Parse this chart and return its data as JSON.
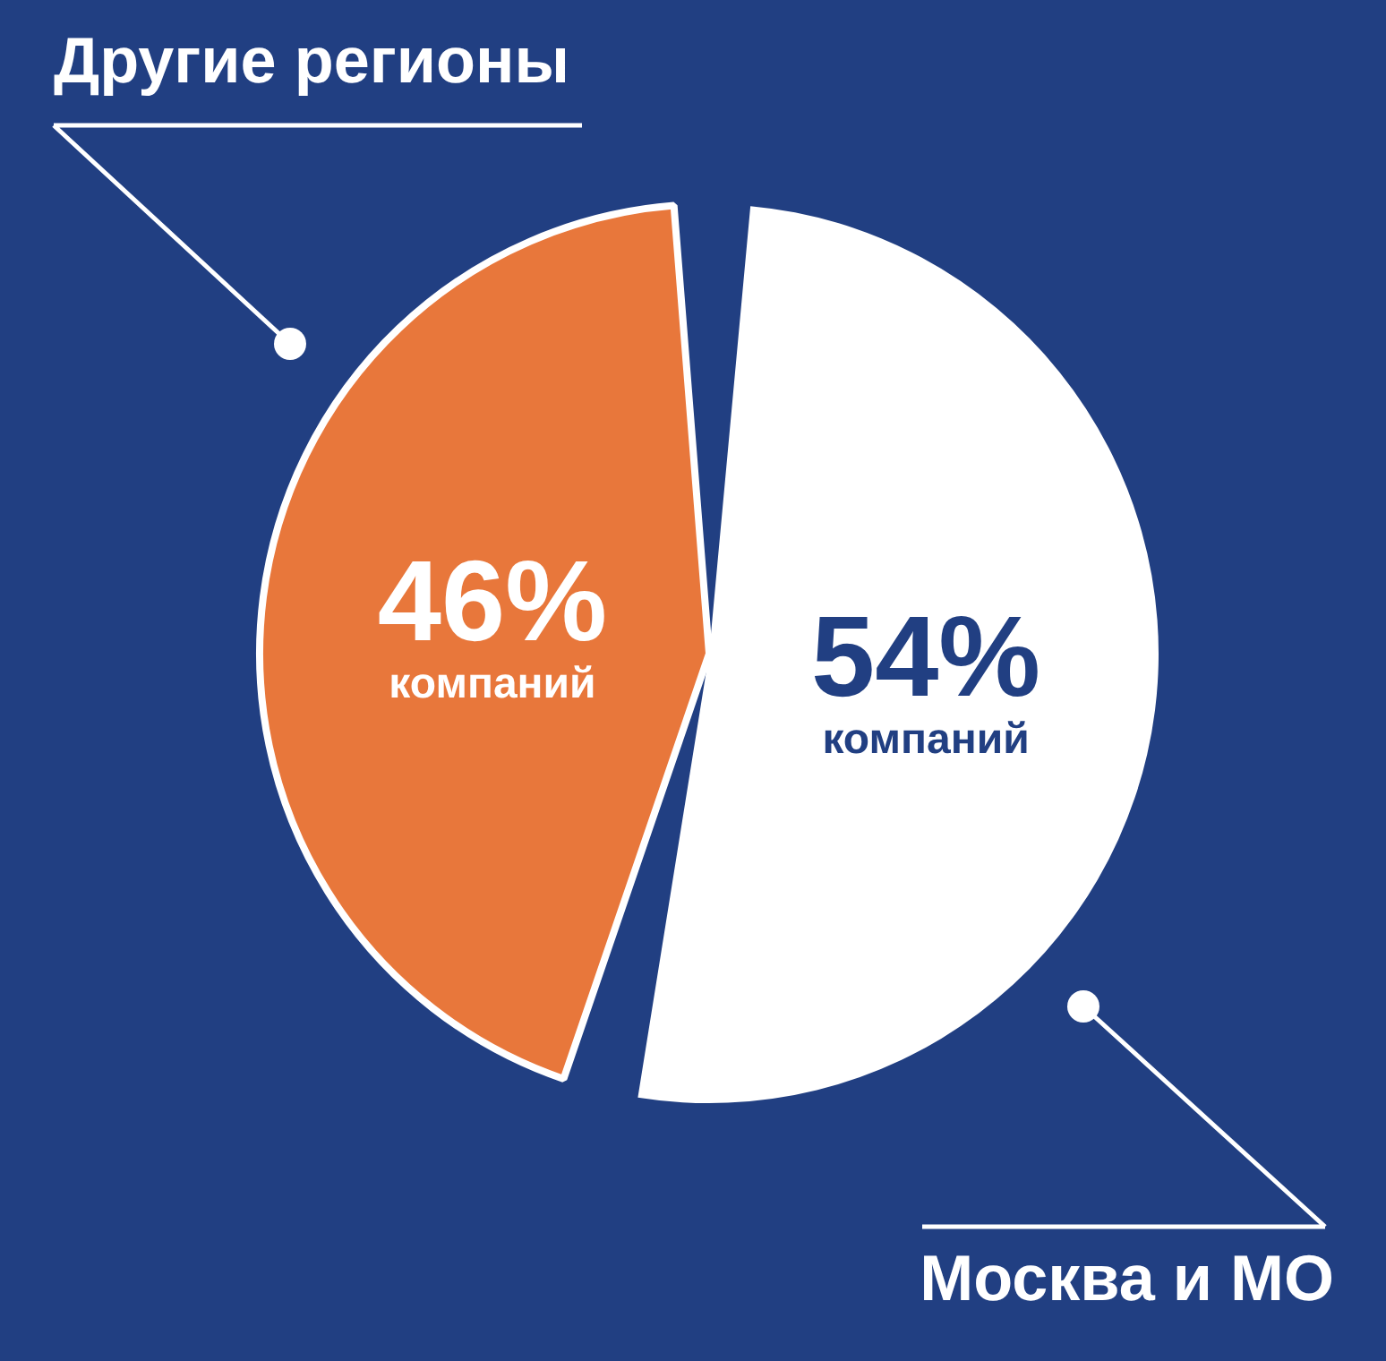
{
  "chart_data": {
    "type": "pie",
    "categories": [
      "Москва и МО",
      "Другие регионы"
    ],
    "values": [
      54,
      46
    ],
    "colors": [
      "#ffffff",
      "#e8773b"
    ],
    "value_labels": [
      "54% компаний",
      "46% компаний"
    ],
    "legend": false
  }
}
